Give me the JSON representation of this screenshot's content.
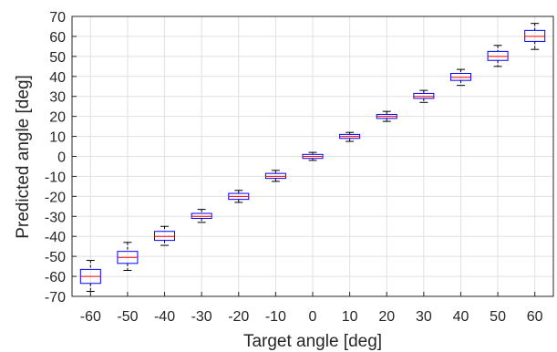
{
  "chart_data": {
    "type": "box",
    "xlabel": "Target angle [deg]",
    "ylabel": "Predicted angle [deg]",
    "xlim": [
      -65,
      65
    ],
    "ylim": [
      -70,
      70
    ],
    "xticks": [
      -60,
      -50,
      -40,
      -30,
      -20,
      -10,
      0,
      10,
      20,
      30,
      40,
      50,
      60
    ],
    "yticks": [
      -70,
      -60,
      -50,
      -40,
      -30,
      -20,
      -10,
      0,
      10,
      20,
      30,
      40,
      50,
      60,
      70
    ],
    "grid": true,
    "colors": {
      "box": "#0000ff",
      "median": "#ff0000",
      "whisker": "#000000",
      "grid": "#e0e0e0",
      "axis": "#262626"
    },
    "boxes": [
      {
        "x": -60,
        "whisker_low": -67.5,
        "q1": -63.5,
        "median": -60,
        "q3": -56.5,
        "whisker_high": -52
      },
      {
        "x": -50,
        "whisker_low": -57,
        "q1": -53.5,
        "median": -50.5,
        "q3": -47.5,
        "whisker_high": -43
      },
      {
        "x": -40,
        "whisker_low": -44.5,
        "q1": -42,
        "median": -40,
        "q3": -37.5,
        "whisker_high": -35
      },
      {
        "x": -30,
        "whisker_low": -33,
        "q1": -31,
        "median": -30,
        "q3": -28.5,
        "whisker_high": -26.5
      },
      {
        "x": -20,
        "whisker_low": -23,
        "q1": -21.5,
        "median": -20,
        "q3": -18.5,
        "whisker_high": -17
      },
      {
        "x": -10,
        "whisker_low": -12.5,
        "q1": -11,
        "median": -10,
        "q3": -8.5,
        "whisker_high": -7
      },
      {
        "x": 0,
        "whisker_low": -2,
        "q1": -1,
        "median": 0,
        "q3": 1,
        "whisker_high": 2
      },
      {
        "x": 10,
        "whisker_low": 7.5,
        "q1": 9,
        "median": 10,
        "q3": 11,
        "whisker_high": 12
      },
      {
        "x": 20,
        "whisker_low": 17.5,
        "q1": 19,
        "median": 20,
        "q3": 21,
        "whisker_high": 22.5
      },
      {
        "x": 30,
        "whisker_low": 27,
        "q1": 29,
        "median": 30,
        "q3": 31.5,
        "whisker_high": 33
      },
      {
        "x": 40,
        "whisker_low": 35.5,
        "q1": 38,
        "median": 39.5,
        "q3": 41.5,
        "whisker_high": 43.5
      },
      {
        "x": 50,
        "whisker_low": 45,
        "q1": 48,
        "median": 50,
        "q3": 52.5,
        "whisker_high": 55.5
      },
      {
        "x": 60,
        "whisker_low": 53.5,
        "q1": 57.5,
        "median": 60,
        "q3": 63,
        "whisker_high": 66.5
      }
    ]
  }
}
